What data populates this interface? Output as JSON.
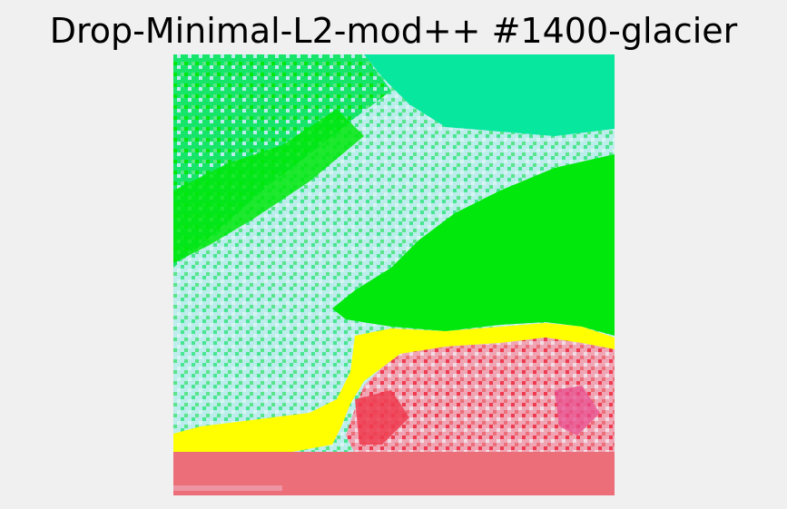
{
  "figure": {
    "title": "Drop-Minimal-L2-mod++ #1400-glacier"
  },
  "segmentation_colors": {
    "teal": "#07e79d",
    "pale_cyan": "#bdeced",
    "green": "#00e80c",
    "mint": "#17e56a",
    "light_green": "#5ae58a",
    "yellow": "#ffff00",
    "salmon": "#ec6e79",
    "pink": "#f0a5b5",
    "pale_pink": "#f2dce3",
    "red": "#ef3b4f",
    "magenta": "#e84f8f"
  }
}
